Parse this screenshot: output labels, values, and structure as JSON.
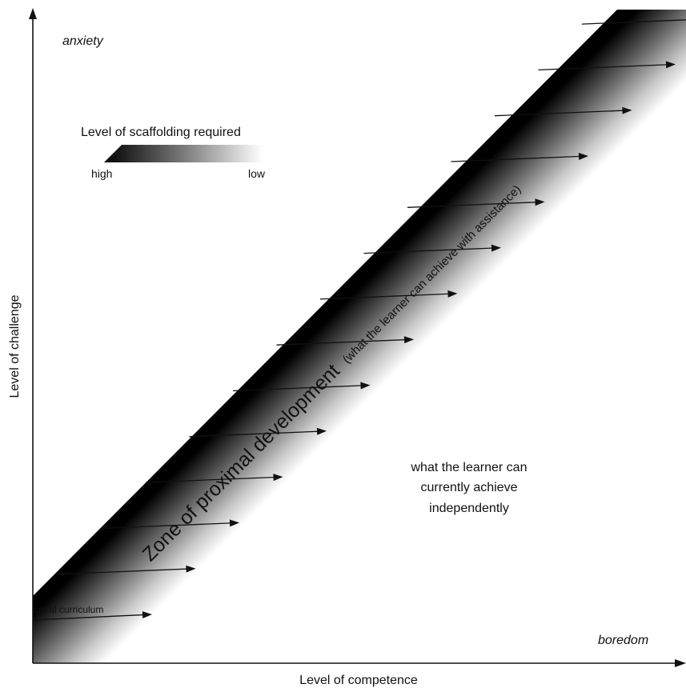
{
  "axes": {
    "y_label": "Level of challenge",
    "x_label": "Level of competence"
  },
  "corners": {
    "top_left": "anxiety",
    "bottom_right": "boredom"
  },
  "legend": {
    "title": "Level of scaffolding required",
    "high": "high",
    "low": "low"
  },
  "zone": {
    "main": "Zone of proximal development",
    "sub": "(what the learner can achieve with assistance)"
  },
  "independent": {
    "line1": "what the learner can",
    "line2": "currently achieve",
    "line3": "independently"
  },
  "spiral": {
    "label": "spiral curriculum",
    "arrow_count": 14
  },
  "colors": {
    "zone_dark": "#000000",
    "zone_light": "#ffffff",
    "ink": "#111111"
  }
}
